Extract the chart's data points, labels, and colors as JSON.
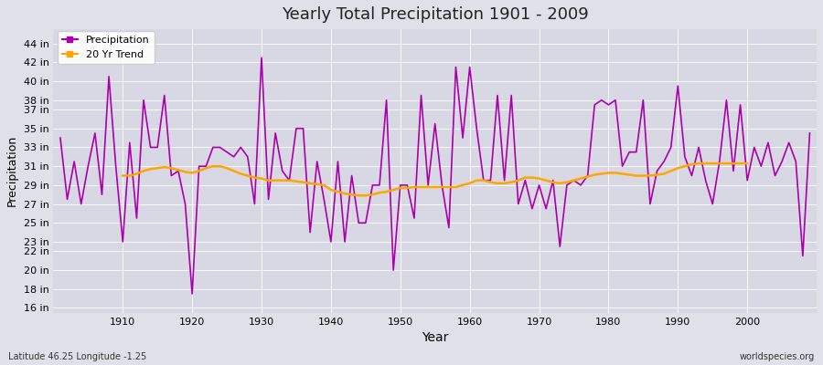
{
  "title": "Yearly Total Precipitation 1901 - 2009",
  "xlabel": "Year",
  "ylabel": "Precipitation",
  "subtitle_left": "Latitude 46.25 Longitude -1.25",
  "subtitle_right": "worldspecies.org",
  "legend_entries": [
    "Precipitation",
    "20 Yr Trend"
  ],
  "precip_color": "#AA00AA",
  "trend_color": "#FFA500",
  "bg_color": "#E0E0E8",
  "plot_bg_color": "#D8D8E4",
  "years": [
    1901,
    1902,
    1903,
    1904,
    1905,
    1906,
    1907,
    1908,
    1909,
    1910,
    1911,
    1912,
    1913,
    1914,
    1915,
    1916,
    1917,
    1918,
    1919,
    1920,
    1921,
    1922,
    1923,
    1924,
    1925,
    1926,
    1927,
    1928,
    1929,
    1930,
    1931,
    1932,
    1933,
    1934,
    1935,
    1936,
    1937,
    1938,
    1939,
    1940,
    1941,
    1942,
    1943,
    1944,
    1945,
    1946,
    1947,
    1948,
    1949,
    1950,
    1951,
    1952,
    1953,
    1954,
    1955,
    1956,
    1957,
    1958,
    1959,
    1960,
    1961,
    1962,
    1963,
    1964,
    1965,
    1966,
    1967,
    1968,
    1969,
    1970,
    1971,
    1972,
    1973,
    1974,
    1975,
    1976,
    1977,
    1978,
    1979,
    1980,
    1981,
    1982,
    1983,
    1984,
    1985,
    1986,
    1987,
    1988,
    1989,
    1990,
    1991,
    1992,
    1993,
    1994,
    1995,
    1996,
    1997,
    1998,
    1999,
    2000,
    2001,
    2002,
    2003,
    2004,
    2005,
    2006,
    2007,
    2008,
    2009
  ],
  "precip_values": [
    34.0,
    27.5,
    31.5,
    27.0,
    31.0,
    34.5,
    28.0,
    40.5,
    31.0,
    23.0,
    33.5,
    25.5,
    38.0,
    33.0,
    33.0,
    38.5,
    30.0,
    30.5,
    27.0,
    17.5,
    31.0,
    31.0,
    33.0,
    33.0,
    32.5,
    32.0,
    33.0,
    32.0,
    27.0,
    42.5,
    27.5,
    34.5,
    30.5,
    29.5,
    35.0,
    35.0,
    24.0,
    31.5,
    27.5,
    23.0,
    31.5,
    23.0,
    30.0,
    25.0,
    25.0,
    29.0,
    29.0,
    38.0,
    20.0,
    29.0,
    29.0,
    25.5,
    38.5,
    29.0,
    35.5,
    29.0,
    24.5,
    41.5,
    34.0,
    41.5,
    35.0,
    29.5,
    29.5,
    38.5,
    29.5,
    38.5,
    27.0,
    29.5,
    26.5,
    29.0,
    26.5,
    29.5,
    22.5,
    29.0,
    29.5,
    29.0,
    30.0,
    37.5,
    38.0,
    37.5,
    38.0,
    31.0,
    32.5,
    32.5,
    38.0,
    27.0,
    30.5,
    31.5,
    33.0,
    39.5,
    32.0,
    30.0,
    33.0,
    29.5,
    27.0,
    31.5,
    38.0,
    30.5,
    37.5,
    29.5,
    33.0,
    31.0,
    33.5,
    30.0,
    31.5,
    33.5,
    31.5,
    21.5,
    34.5
  ],
  "trend_values": [
    null,
    null,
    null,
    null,
    null,
    null,
    null,
    null,
    null,
    30.0,
    30.0,
    30.2,
    30.5,
    30.7,
    30.8,
    30.9,
    30.8,
    30.6,
    30.4,
    30.3,
    30.5,
    30.8,
    31.0,
    31.0,
    30.8,
    30.5,
    30.2,
    30.0,
    29.8,
    29.7,
    29.5,
    29.5,
    29.5,
    29.5,
    29.4,
    29.3,
    29.2,
    29.1,
    29.0,
    28.5,
    28.3,
    28.1,
    28.0,
    27.9,
    27.9,
    28.0,
    28.2,
    28.3,
    28.5,
    28.7,
    28.7,
    28.8,
    28.8,
    28.8,
    28.8,
    28.8,
    28.8,
    28.8,
    29.0,
    29.2,
    29.5,
    29.5,
    29.3,
    29.2,
    29.2,
    29.3,
    29.5,
    29.8,
    29.8,
    29.7,
    29.5,
    29.3,
    29.2,
    29.3,
    29.5,
    29.7,
    29.9,
    30.1,
    30.2,
    30.3,
    30.3,
    30.2,
    30.1,
    30.0,
    30.0,
    30.0,
    30.1,
    30.2,
    30.5,
    30.8,
    31.0,
    31.2,
    31.3,
    31.3,
    31.3,
    31.3,
    31.3,
    31.3,
    31.3,
    31.3,
    null,
    null,
    null,
    null,
    null,
    null,
    null,
    null,
    null
  ],
  "ytick_labels": [
    "16 in",
    "18 in",
    "20 in",
    "22 in",
    "23 in",
    "25 in",
    "27 in",
    "29 in",
    "31 in",
    "33 in",
    "35 in",
    "37 in",
    "38 in",
    "40 in",
    "42 in",
    "44 in"
  ],
  "ytick_values": [
    16,
    18,
    20,
    22,
    23,
    25,
    27,
    29,
    31,
    33,
    35,
    37,
    38,
    40,
    42,
    44
  ],
  "ylim": [
    15.5,
    45.5
  ],
  "xlim": [
    1900,
    2010
  ],
  "xticks": [
    1910,
    1920,
    1930,
    1940,
    1950,
    1960,
    1970,
    1980,
    1990,
    2000
  ],
  "figsize": [
    9.0,
    4.0
  ],
  "dpi": 100
}
